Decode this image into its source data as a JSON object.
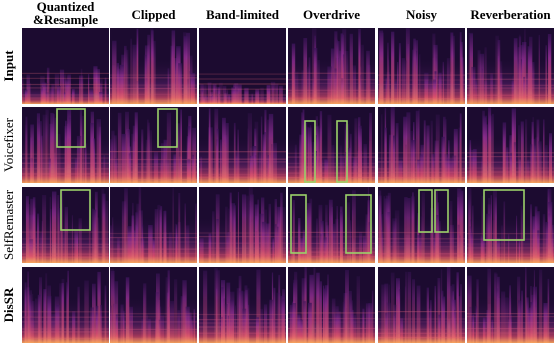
{
  "columns": [
    "Quantized\n&Resample",
    "Clipped",
    "Band-limited",
    "Overdrive",
    "Noisy",
    "Reverberation"
  ],
  "rows": [
    "Input",
    "Voicefixer",
    "SelfRemaster",
    "DisSR"
  ]
}
